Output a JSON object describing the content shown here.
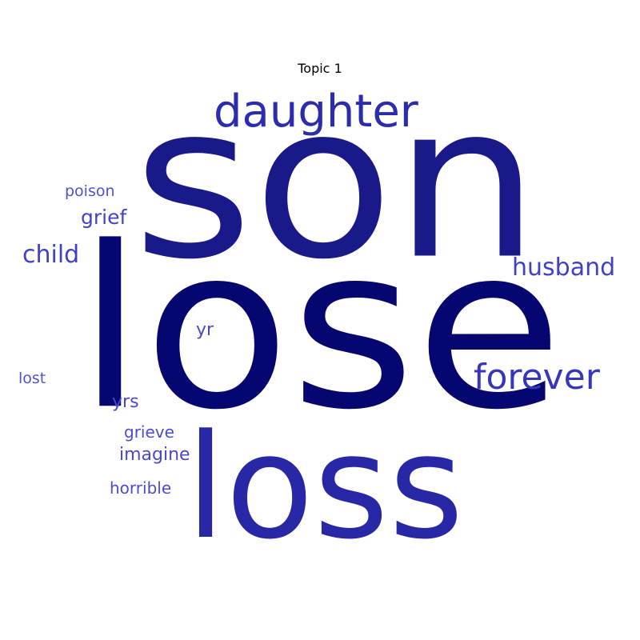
{
  "title": "Topic 1",
  "words": [
    {
      "text": "lose",
      "color": "#060670"
    },
    {
      "text": "son",
      "color": "#191989"
    },
    {
      "text": "loss",
      "color": "#2828a6"
    },
    {
      "text": "daughter",
      "color": "#2c2cae"
    },
    {
      "text": "forever",
      "color": "#3636bd"
    },
    {
      "text": "husband",
      "color": "#4040c8"
    },
    {
      "text": "child",
      "color": "#4040c8"
    },
    {
      "text": "grief",
      "color": "#4343c8"
    },
    {
      "text": "yr",
      "color": "#4848cc"
    },
    {
      "text": "yrs",
      "color": "#4848cc"
    },
    {
      "text": "imagine",
      "color": "#4848cc"
    },
    {
      "text": "grieve",
      "color": "#4c4ccf"
    },
    {
      "text": "horrible",
      "color": "#4c4ccf"
    },
    {
      "text": "lost",
      "color": "#5050d2"
    },
    {
      "text": "poison",
      "color": "#5050d2"
    }
  ]
}
